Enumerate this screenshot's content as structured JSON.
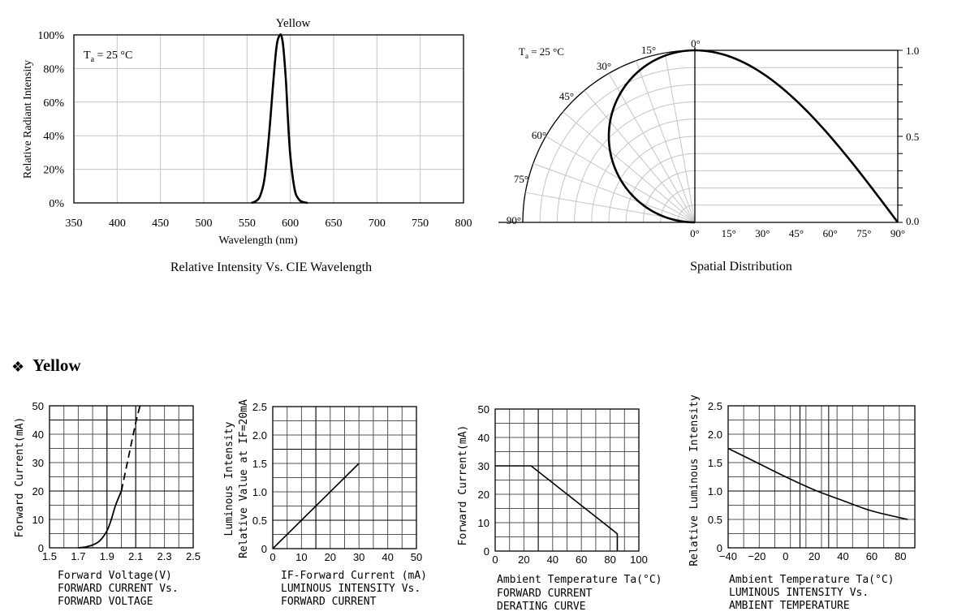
{
  "section": {
    "bullet": "❖",
    "title": "Yellow"
  },
  "chart_data": [
    {
      "id": "spectrum",
      "type": "line",
      "title": "Yellow",
      "caption": "Relative Intensity Vs. CIE Wavelength",
      "annotation": "Ta = 25 °C",
      "xlabel": "Wavelength (nm)",
      "ylabel": "Relative Radiant Intensity",
      "xlim": [
        350,
        800
      ],
      "ylim": [
        0,
        100
      ],
      "xticks": [
        "350",
        "400",
        "450",
        "500",
        "550",
        "600",
        "650",
        "700",
        "750",
        "800"
      ],
      "yticks": [
        "0%",
        "20%",
        "40%",
        "60%",
        "80%",
        "100%"
      ],
      "grid": true,
      "series": [
        {
          "x": [
            555,
            560,
            565,
            570,
            575,
            580,
            583,
            585,
            588,
            590,
            592,
            595,
            597,
            600,
            605,
            610,
            615,
            620
          ],
          "y": [
            0,
            1,
            4,
            14,
            38,
            70,
            88,
            96,
            100,
            99,
            92,
            72,
            52,
            28,
            8,
            2,
            0.5,
            0
          ]
        }
      ]
    },
    {
      "id": "spatial",
      "type": "line",
      "caption": "Spatial Distribution",
      "annotation": "Ta = 25 °C",
      "angle_labels": [
        "0°",
        "15°",
        "30°",
        "45°",
        "60°",
        "75°",
        "90°"
      ],
      "right_axis_ticks": [
        "1.0",
        "0.5",
        "0.0"
      ],
      "bottom_ticks": [
        "0°",
        "15°",
        "30°",
        "45°",
        "60°",
        "75°",
        "90°"
      ],
      "grid": true,
      "series": [
        {
          "angle_deg": [
            0,
            15,
            30,
            45,
            60,
            75,
            90
          ],
          "relative_intensity": [
            1.0,
            0.966,
            0.866,
            0.707,
            0.5,
            0.259,
            0.0
          ]
        }
      ]
    },
    {
      "id": "iv",
      "type": "line",
      "xlabel": "Forward Voltage(V)",
      "ylabel": "Forward Current(mA)",
      "caption": [
        "FORWARD CURRENT Vs.",
        "FORWARD VOLTAGE"
      ],
      "xlim": [
        1.5,
        2.5
      ],
      "ylim": [
        0,
        50
      ],
      "xticks": [
        "1.5",
        "1.7",
        "1.9",
        "2.1",
        "2.3",
        "2.5"
      ],
      "yticks": [
        "0",
        "10",
        "20",
        "30",
        "40",
        "50"
      ],
      "grid": true,
      "series": [
        {
          "style": "solid",
          "x": [
            1.7,
            1.75,
            1.8,
            1.85,
            1.9,
            1.93,
            1.96,
            2.0
          ],
          "y": [
            0,
            0.3,
            1,
            2.5,
            6,
            10,
            15,
            20
          ]
        },
        {
          "style": "dashed",
          "x": [
            2.0,
            2.05,
            2.1,
            2.13
          ],
          "y": [
            20,
            32,
            44,
            50
          ]
        }
      ]
    },
    {
      "id": "lum_if",
      "type": "line",
      "xlabel": "IF-Forward Current (mA)",
      "ylabel": [
        "Luminous Intensity",
        "Relative Value at IF=20mA"
      ],
      "caption": [
        "LUMINOUS INTENSITY Vs.",
        "FORWARD CURRENT"
      ],
      "xlim": [
        0,
        50
      ],
      "ylim": [
        0,
        2.5
      ],
      "xticks": [
        "0",
        "10",
        "20",
        "30",
        "40",
        "50"
      ],
      "yticks": [
        "0",
        "0.5",
        "1.0",
        "1.5",
        "2.0",
        "2.5"
      ],
      "grid": true,
      "series": [
        {
          "x": [
            0,
            30
          ],
          "y": [
            0,
            1.5
          ]
        }
      ]
    },
    {
      "id": "derating",
      "type": "line",
      "xlabel": "Ambient Temperature Ta(°C)",
      "ylabel": "Forward Current(mA)",
      "caption": [
        "FORWARD CURRENT",
        "DERATING CURVE"
      ],
      "xlim": [
        0,
        100
      ],
      "ylim": [
        0,
        50
      ],
      "xticks": [
        "0",
        "20",
        "40",
        "60",
        "80",
        "100"
      ],
      "yticks": [
        "0",
        "10",
        "20",
        "30",
        "40",
        "50"
      ],
      "grid": true,
      "series": [
        {
          "x": [
            0,
            25,
            84,
            85,
            85
          ],
          "y": [
            30,
            30,
            6.5,
            6,
            0
          ]
        }
      ]
    },
    {
      "id": "lum_temp",
      "type": "line",
      "xlabel": "Ambient Temperature Ta(°C)",
      "ylabel": "Relative Luminous Intensity",
      "caption": [
        "LUMINOUS INTENSITY Vs.",
        "AMBIENT TEMPERATURE"
      ],
      "xlim": [
        -40,
        90
      ],
      "ylim": [
        0,
        2.5
      ],
      "xticks": [
        "−40",
        "−20",
        "0",
        "20",
        "40",
        "60",
        "80"
      ],
      "yticks": [
        "0",
        "0.5",
        "1.0",
        "1.5",
        "2.0",
        "2.5"
      ],
      "grid": true,
      "series": [
        {
          "x": [
            -40,
            -20,
            0,
            20,
            40,
            60,
            85
          ],
          "y": [
            1.75,
            1.5,
            1.25,
            1.02,
            0.83,
            0.65,
            0.5
          ]
        }
      ]
    }
  ]
}
